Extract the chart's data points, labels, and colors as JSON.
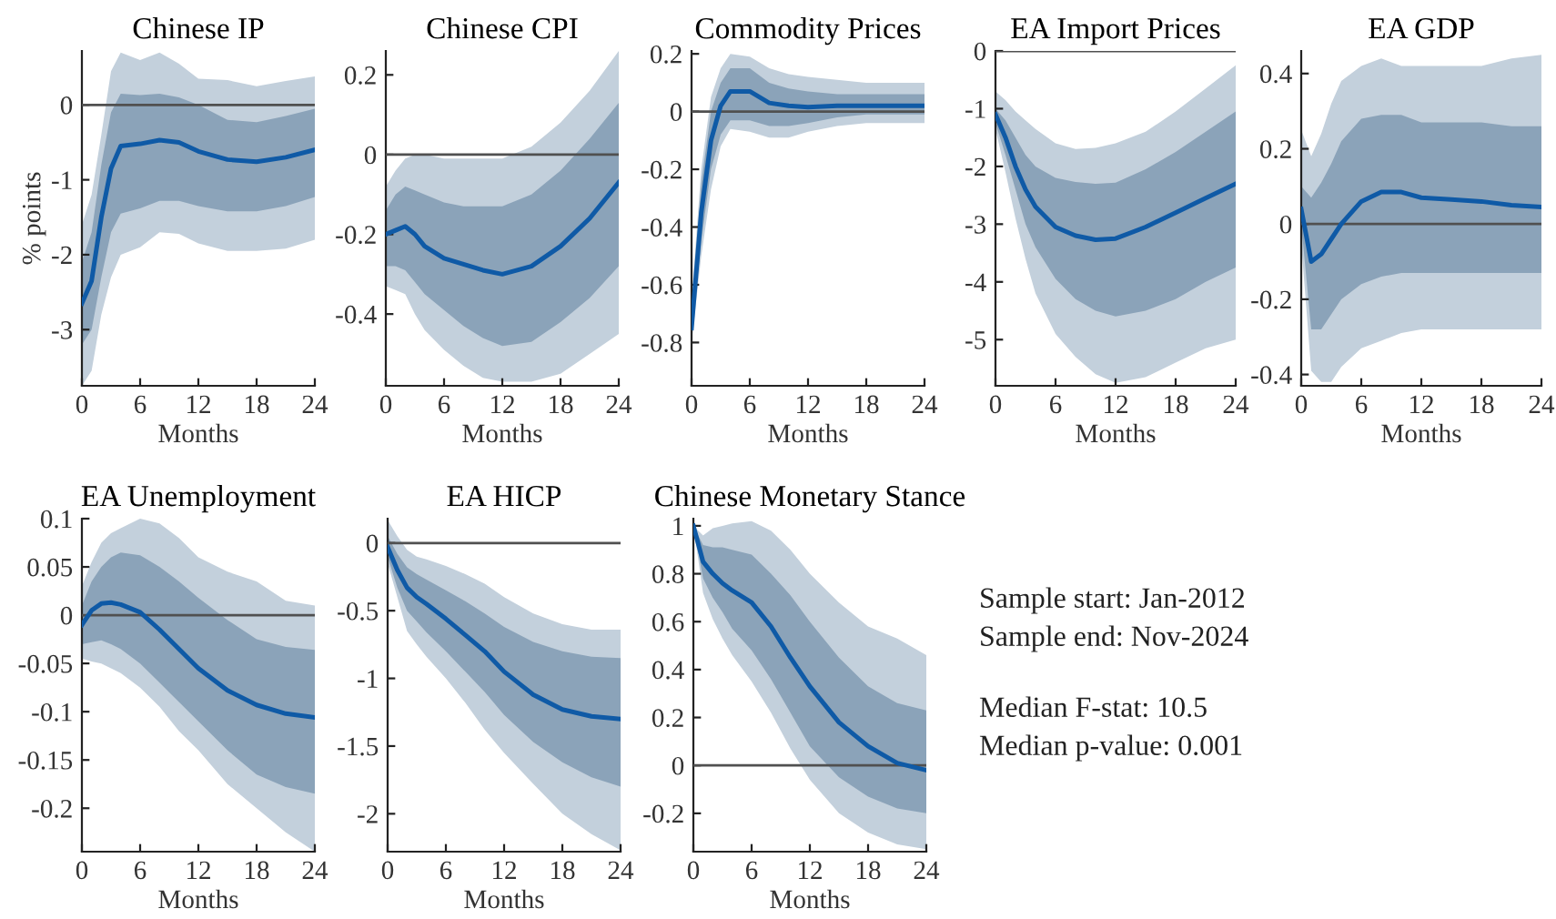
{
  "chart_data": [
    {
      "type": "line",
      "title": "Chinese IP",
      "xlabel": "Months",
      "ylabel": "% points",
      "x": [
        0,
        1,
        2,
        3,
        4,
        6,
        8,
        10,
        12,
        15,
        18,
        21,
        24
      ],
      "xlim": [
        0,
        24
      ],
      "xticks": [
        0,
        6,
        12,
        18,
        24
      ],
      "ylim": [
        -3.75,
        0.72
      ],
      "yticks": [
        -3,
        -2,
        -1,
        0
      ],
      "ref_lines": [
        {
          "axis": "y",
          "value": 0,
          "color": "#505050"
        }
      ],
      "series": [
        {
          "color": "#c3d0dc",
          "values": [
            null,
            null,
            null,
            null,
            null,
            null,
            null,
            null,
            null,
            null,
            null,
            null,
            null
          ],
          "lower": [
            -3.75,
            -3.55,
            -2.8,
            -2.3,
            -2.0,
            -1.9,
            -1.7,
            -1.72,
            -1.85,
            -1.95,
            -1.95,
            -1.92,
            -1.8
          ],
          "upper": [
            -1.6,
            -1.2,
            -0.4,
            0.45,
            0.7,
            0.6,
            0.7,
            0.55,
            0.35,
            0.33,
            0.25,
            0.32,
            0.38
          ]
        },
        {
          "color": "#8ba3b9",
          "values": [
            null,
            null,
            null,
            null,
            null,
            null,
            null,
            null,
            null,
            null,
            null,
            null,
            null
          ],
          "lower": [
            -3.2,
            -3.0,
            -2.3,
            -1.7,
            -1.45,
            -1.38,
            -1.28,
            -1.28,
            -1.35,
            -1.42,
            -1.42,
            -1.35,
            -1.23
          ],
          "upper": [
            -2.1,
            -1.7,
            -0.8,
            -0.1,
            0.15,
            0.13,
            0.15,
            0.1,
            0.0,
            -0.2,
            -0.23,
            -0.15,
            -0.05
          ]
        },
        {
          "color": "#0f5aa6",
          "values": [
            -2.65,
            -2.35,
            -1.5,
            -0.85,
            -0.55,
            -0.52,
            -0.47,
            -0.5,
            -0.62,
            -0.73,
            -0.76,
            -0.7,
            -0.6
          ]
        }
      ]
    },
    {
      "type": "line",
      "title": "Chinese CPI",
      "xlabel": "Months",
      "x": [
        0,
        1,
        2,
        3,
        4,
        6,
        8,
        10,
        12,
        15,
        18,
        21,
        24
      ],
      "xlim": [
        0,
        24
      ],
      "xticks": [
        0,
        6,
        12,
        18,
        24
      ],
      "ylim": [
        -0.58,
        0.26
      ],
      "yticks": [
        -0.4,
        -0.2,
        0,
        0.2
      ],
      "ref_lines": [
        {
          "axis": "y",
          "value": 0,
          "color": "#505050"
        }
      ],
      "series": [
        {
          "color": "#c3d0dc",
          "values": [
            null,
            null,
            null,
            null,
            null,
            null,
            null,
            null,
            null,
            null,
            null,
            null,
            null
          ],
          "lower": [
            -0.33,
            -0.34,
            -0.35,
            -0.4,
            -0.44,
            -0.49,
            -0.53,
            -0.56,
            -0.57,
            -0.57,
            -0.55,
            -0.5,
            -0.45
          ],
          "upper": [
            -0.08,
            -0.04,
            -0.01,
            0.0,
            0.0,
            -0.01,
            -0.01,
            -0.01,
            -0.01,
            0.02,
            0.08,
            0.16,
            0.26
          ]
        },
        {
          "color": "#8ba3b9",
          "values": [
            null,
            null,
            null,
            null,
            null,
            null,
            null,
            null,
            null,
            null,
            null,
            null,
            null
          ],
          "lower": [
            -0.28,
            -0.28,
            -0.29,
            -0.32,
            -0.35,
            -0.39,
            -0.43,
            -0.46,
            -0.48,
            -0.47,
            -0.42,
            -0.36,
            -0.28
          ],
          "upper": [
            -0.14,
            -0.1,
            -0.08,
            -0.09,
            -0.1,
            -0.12,
            -0.13,
            -0.13,
            -0.13,
            -0.1,
            -0.04,
            0.04,
            0.13
          ]
        },
        {
          "color": "#0f5aa6",
          "values": [
            -0.2,
            -0.19,
            -0.18,
            -0.2,
            -0.23,
            -0.26,
            -0.275,
            -0.29,
            -0.3,
            -0.28,
            -0.23,
            -0.16,
            -0.07
          ]
        }
      ]
    },
    {
      "type": "line",
      "title": "Commodity Prices",
      "xlabel": "Months",
      "x": [
        0,
        1,
        2,
        3,
        4,
        6,
        8,
        10,
        12,
        15,
        18,
        21,
        24
      ],
      "xlim": [
        0,
        24
      ],
      "xticks": [
        0,
        6,
        12,
        18,
        24
      ],
      "ylim": [
        -0.95,
        0.21
      ],
      "yticks": [
        -0.8,
        -0.6,
        -0.4,
        -0.2,
        0,
        0.2
      ],
      "ref_lines": [
        {
          "axis": "y",
          "value": 0,
          "color": "#505050"
        }
      ],
      "series": [
        {
          "color": "#c3d0dc",
          "values": [
            null,
            null,
            null,
            null,
            null,
            null,
            null,
            null,
            null,
            null,
            null,
            null,
            null
          ],
          "lower": [
            -0.8,
            -0.5,
            -0.27,
            -0.12,
            -0.06,
            -0.07,
            -0.09,
            -0.09,
            -0.07,
            -0.05,
            -0.04,
            -0.04,
            -0.04
          ],
          "upper": [
            -0.65,
            -0.2,
            0.05,
            0.15,
            0.2,
            0.19,
            0.15,
            0.13,
            0.12,
            0.11,
            0.1,
            0.1,
            0.1
          ]
        },
        {
          "color": "#8ba3b9",
          "values": [
            null,
            null,
            null,
            null,
            null,
            null,
            null,
            null,
            null,
            null,
            null,
            null,
            null
          ],
          "lower": [
            -0.78,
            -0.45,
            -0.2,
            -0.08,
            -0.03,
            -0.03,
            -0.05,
            -0.05,
            -0.04,
            -0.02,
            -0.01,
            -0.01,
            -0.01
          ],
          "upper": [
            -0.7,
            -0.25,
            0.0,
            0.1,
            0.15,
            0.15,
            0.1,
            0.08,
            0.07,
            0.06,
            0.06,
            0.06,
            0.06
          ]
        },
        {
          "color": "#0f5aa6",
          "values": [
            -0.75,
            -0.35,
            -0.1,
            0.02,
            0.07,
            0.07,
            0.03,
            0.02,
            0.015,
            0.02,
            0.02,
            0.02,
            0.02
          ]
        }
      ]
    },
    {
      "type": "line",
      "title": "EA Import Prices",
      "xlabel": "Months",
      "x": [
        0,
        1,
        2,
        3,
        4,
        6,
        8,
        10,
        12,
        15,
        18,
        21,
        24
      ],
      "xlim": [
        0,
        24
      ],
      "xticks": [
        0,
        6,
        12,
        18,
        24
      ],
      "ylim": [
        -5.8,
        0
      ],
      "yticks": [
        -5,
        -4,
        -3,
        -2,
        -1,
        0
      ],
      "ref_lines": [
        {
          "axis": "y",
          "value": 0,
          "color": "#505050"
        }
      ],
      "series": [
        {
          "color": "#c3d0dc",
          "values": [
            null,
            null,
            null,
            null,
            null,
            null,
            null,
            null,
            null,
            null,
            null,
            null,
            null
          ],
          "lower": [
            -1.35,
            -2.1,
            -2.9,
            -3.6,
            -4.2,
            -4.9,
            -5.3,
            -5.6,
            -5.75,
            -5.65,
            -5.4,
            -5.15,
            -5.0
          ],
          "upper": [
            -0.7,
            -0.85,
            -1.05,
            -1.2,
            -1.35,
            -1.6,
            -1.7,
            -1.68,
            -1.6,
            -1.4,
            -1.05,
            -0.65,
            -0.25
          ]
        },
        {
          "color": "#8ba3b9",
          "values": [
            null,
            null,
            null,
            null,
            null,
            null,
            null,
            null,
            null,
            null,
            null,
            null,
            null
          ],
          "lower": [
            -1.25,
            -1.8,
            -2.4,
            -3.0,
            -3.4,
            -3.95,
            -4.3,
            -4.5,
            -4.6,
            -4.5,
            -4.3,
            -4.0,
            -3.75
          ],
          "upper": [
            -1.0,
            -1.2,
            -1.5,
            -1.8,
            -2.0,
            -2.2,
            -2.27,
            -2.3,
            -2.28,
            -2.05,
            -1.75,
            -1.4,
            -1.05
          ]
        },
        {
          "color": "#0f5aa6",
          "values": [
            -1.1,
            -1.5,
            -2.0,
            -2.4,
            -2.7,
            -3.05,
            -3.2,
            -3.27,
            -3.25,
            -3.05,
            -2.8,
            -2.55,
            -2.3
          ]
        }
      ]
    },
    {
      "type": "line",
      "title": "EA GDP",
      "xlabel": "Months",
      "x": [
        0,
        1,
        2,
        3,
        4,
        6,
        8,
        10,
        12,
        15,
        18,
        21,
        24
      ],
      "xlim": [
        0,
        24
      ],
      "xticks": [
        0,
        6,
        12,
        18,
        24
      ],
      "ylim": [
        -0.43,
        0.46
      ],
      "yticks": [
        -0.4,
        -0.2,
        0,
        0.2,
        0.4
      ],
      "ref_lines": [
        {
          "axis": "y",
          "value": 0,
          "color": "#505050"
        }
      ],
      "series": [
        {
          "color": "#c3d0dc",
          "values": [
            null,
            null,
            null,
            null,
            null,
            null,
            null,
            null,
            null,
            null,
            null,
            null,
            null
          ],
          "lower": [
            -0.05,
            -0.39,
            -0.42,
            -0.42,
            -0.38,
            -0.33,
            -0.31,
            -0.29,
            -0.28,
            -0.28,
            -0.28,
            -0.28,
            -0.28
          ],
          "upper": [
            0.25,
            0.18,
            0.24,
            0.32,
            0.38,
            0.42,
            0.44,
            0.42,
            0.42,
            0.42,
            0.42,
            0.44,
            0.45
          ]
        },
        {
          "color": "#8ba3b9",
          "values": [
            null,
            null,
            null,
            null,
            null,
            null,
            null,
            null,
            null,
            null,
            null,
            null,
            null
          ],
          "lower": [
            0.0,
            -0.28,
            -0.28,
            -0.24,
            -0.2,
            -0.16,
            -0.14,
            -0.13,
            -0.13,
            -0.13,
            -0.13,
            -0.13,
            -0.13
          ],
          "upper": [
            0.1,
            0.07,
            0.11,
            0.16,
            0.22,
            0.28,
            0.29,
            0.29,
            0.27,
            0.27,
            0.27,
            0.26,
            0.26
          ]
        },
        {
          "color": "#0f5aa6",
          "values": [
            0.04,
            -0.1,
            -0.08,
            -0.04,
            0.0,
            0.06,
            0.085,
            0.085,
            0.07,
            0.065,
            0.06,
            0.05,
            0.045
          ]
        }
      ]
    },
    {
      "type": "line",
      "title": "EA Unemployment",
      "xlabel": "Months",
      "x": [
        0,
        1,
        2,
        3,
        4,
        6,
        8,
        10,
        12,
        15,
        18,
        21,
        24
      ],
      "xlim": [
        0,
        24
      ],
      "xticks": [
        0,
        6,
        12,
        18,
        24
      ],
      "ylim": [
        -0.245,
        0.1
      ],
      "yticks": [
        -0.2,
        -0.15,
        -0.1,
        -0.05,
        0,
        0.05,
        0.1
      ],
      "ref_lines": [
        {
          "axis": "y",
          "value": 0,
          "color": "#505050"
        }
      ],
      "series": [
        {
          "color": "#c3d0dc",
          "values": [
            null,
            null,
            null,
            null,
            null,
            null,
            null,
            null,
            null,
            null,
            null,
            null,
            null
          ],
          "lower": [
            -0.045,
            -0.048,
            -0.05,
            -0.055,
            -0.06,
            -0.075,
            -0.095,
            -0.12,
            -0.14,
            -0.175,
            -0.2,
            -0.225,
            -0.245
          ],
          "upper": [
            0.03,
            0.055,
            0.075,
            0.085,
            0.09,
            0.1,
            0.095,
            0.08,
            0.06,
            0.045,
            0.035,
            0.015,
            0.01
          ]
        },
        {
          "color": "#8ba3b9",
          "values": [
            null,
            null,
            null,
            null,
            null,
            null,
            null,
            null,
            null,
            null,
            null,
            null,
            null
          ],
          "lower": [
            -0.03,
            -0.028,
            -0.026,
            -0.03,
            -0.035,
            -0.05,
            -0.07,
            -0.09,
            -0.11,
            -0.14,
            -0.165,
            -0.178,
            -0.185
          ],
          "upper": [
            0.01,
            0.035,
            0.05,
            0.06,
            0.065,
            0.062,
            0.05,
            0.035,
            0.018,
            -0.005,
            -0.025,
            -0.033,
            -0.036
          ]
        },
        {
          "color": "#0f5aa6",
          "values": [
            -0.01,
            0.005,
            0.012,
            0.013,
            0.011,
            0.003,
            -0.015,
            -0.035,
            -0.055,
            -0.078,
            -0.093,
            -0.102,
            -0.106
          ]
        }
      ]
    },
    {
      "type": "line",
      "title": "EA HICP",
      "xlabel": "Months",
      "x": [
        0,
        1,
        2,
        3,
        4,
        6,
        8,
        10,
        12,
        15,
        18,
        21,
        24
      ],
      "xlim": [
        0,
        24
      ],
      "xticks": [
        0,
        6,
        12,
        18,
        24
      ],
      "ylim": [
        -2.28,
        0.18
      ],
      "yticks": [
        -2,
        -1.5,
        -1,
        -0.5,
        0
      ],
      "ref_lines": [
        {
          "axis": "y",
          "value": 0,
          "color": "#505050"
        }
      ],
      "series": [
        {
          "color": "#c3d0dc",
          "values": [
            null,
            null,
            null,
            null,
            null,
            null,
            null,
            null,
            null,
            null,
            null,
            null,
            null
          ],
          "lower": [
            -0.15,
            -0.4,
            -0.65,
            -0.75,
            -0.84,
            -1.0,
            -1.18,
            -1.38,
            -1.55,
            -1.78,
            -2.0,
            -2.15,
            -2.27
          ],
          "upper": [
            0.17,
            0.05,
            -0.05,
            -0.1,
            -0.12,
            -0.17,
            -0.23,
            -0.3,
            -0.4,
            -0.52,
            -0.6,
            -0.64,
            -0.64
          ]
        },
        {
          "color": "#8ba3b9",
          "values": [
            null,
            null,
            null,
            null,
            null,
            null,
            null,
            null,
            null,
            null,
            null,
            null,
            null
          ],
          "lower": [
            -0.1,
            -0.33,
            -0.5,
            -0.58,
            -0.66,
            -0.8,
            -0.95,
            -1.1,
            -1.27,
            -1.47,
            -1.62,
            -1.73,
            -1.8
          ],
          "upper": [
            0.05,
            -0.08,
            -0.18,
            -0.23,
            -0.27,
            -0.35,
            -0.43,
            -0.52,
            -0.62,
            -0.73,
            -0.8,
            -0.84,
            -0.85
          ]
        },
        {
          "color": "#0f5aa6",
          "values": [
            -0.03,
            -0.2,
            -0.33,
            -0.4,
            -0.45,
            -0.56,
            -0.68,
            -0.8,
            -0.95,
            -1.12,
            -1.23,
            -1.28,
            -1.3
          ]
        }
      ]
    },
    {
      "type": "line",
      "title": "Chinese Monetary Stance",
      "xlabel": "Months",
      "x": [
        0,
        1,
        2,
        3,
        4,
        6,
        8,
        10,
        12,
        15,
        18,
        21,
        24
      ],
      "xlim": [
        0,
        24
      ],
      "xticks": [
        0,
        6,
        12,
        18,
        24
      ],
      "ylim": [
        -0.36,
        1.03
      ],
      "yticks": [
        -0.2,
        0,
        0.2,
        0.4,
        0.6,
        0.8,
        1
      ],
      "ref_lines": [
        {
          "axis": "y",
          "value": 0,
          "color": "#505050"
        }
      ],
      "series": [
        {
          "color": "#c3d0dc",
          "values": [
            null,
            null,
            null,
            null,
            null,
            null,
            null,
            null,
            null,
            null,
            null,
            null,
            null
          ],
          "lower": [
            1.0,
            0.72,
            0.61,
            0.53,
            0.46,
            0.35,
            0.22,
            0.07,
            -0.06,
            -0.2,
            -0.28,
            -0.33,
            -0.35
          ],
          "upper": [
            1.0,
            0.96,
            0.99,
            1.0,
            1.01,
            1.02,
            0.98,
            0.9,
            0.8,
            0.68,
            0.58,
            0.53,
            0.46
          ]
        },
        {
          "color": "#8ba3b9",
          "values": [
            null,
            null,
            null,
            null,
            null,
            null,
            null,
            null,
            null,
            null,
            null,
            null,
            null
          ],
          "lower": [
            1.0,
            0.78,
            0.7,
            0.64,
            0.57,
            0.48,
            0.36,
            0.22,
            0.08,
            -0.05,
            -0.13,
            -0.18,
            -0.2
          ],
          "upper": [
            1.0,
            0.92,
            0.91,
            0.91,
            0.9,
            0.88,
            0.8,
            0.71,
            0.6,
            0.45,
            0.33,
            0.26,
            0.23
          ]
        },
        {
          "color": "#0f5aa6",
          "values": [
            1.0,
            0.85,
            0.8,
            0.76,
            0.73,
            0.68,
            0.58,
            0.45,
            0.33,
            0.18,
            0.08,
            0.01,
            -0.02
          ]
        }
      ]
    },
    {
      "type": "other",
      "annotations": [
        "Sample start: Jan-2012",
        "Sample end: Nov-2024",
        "Median F-stat: 10.5",
        "Median p-value: 0.001"
      ]
    }
  ]
}
